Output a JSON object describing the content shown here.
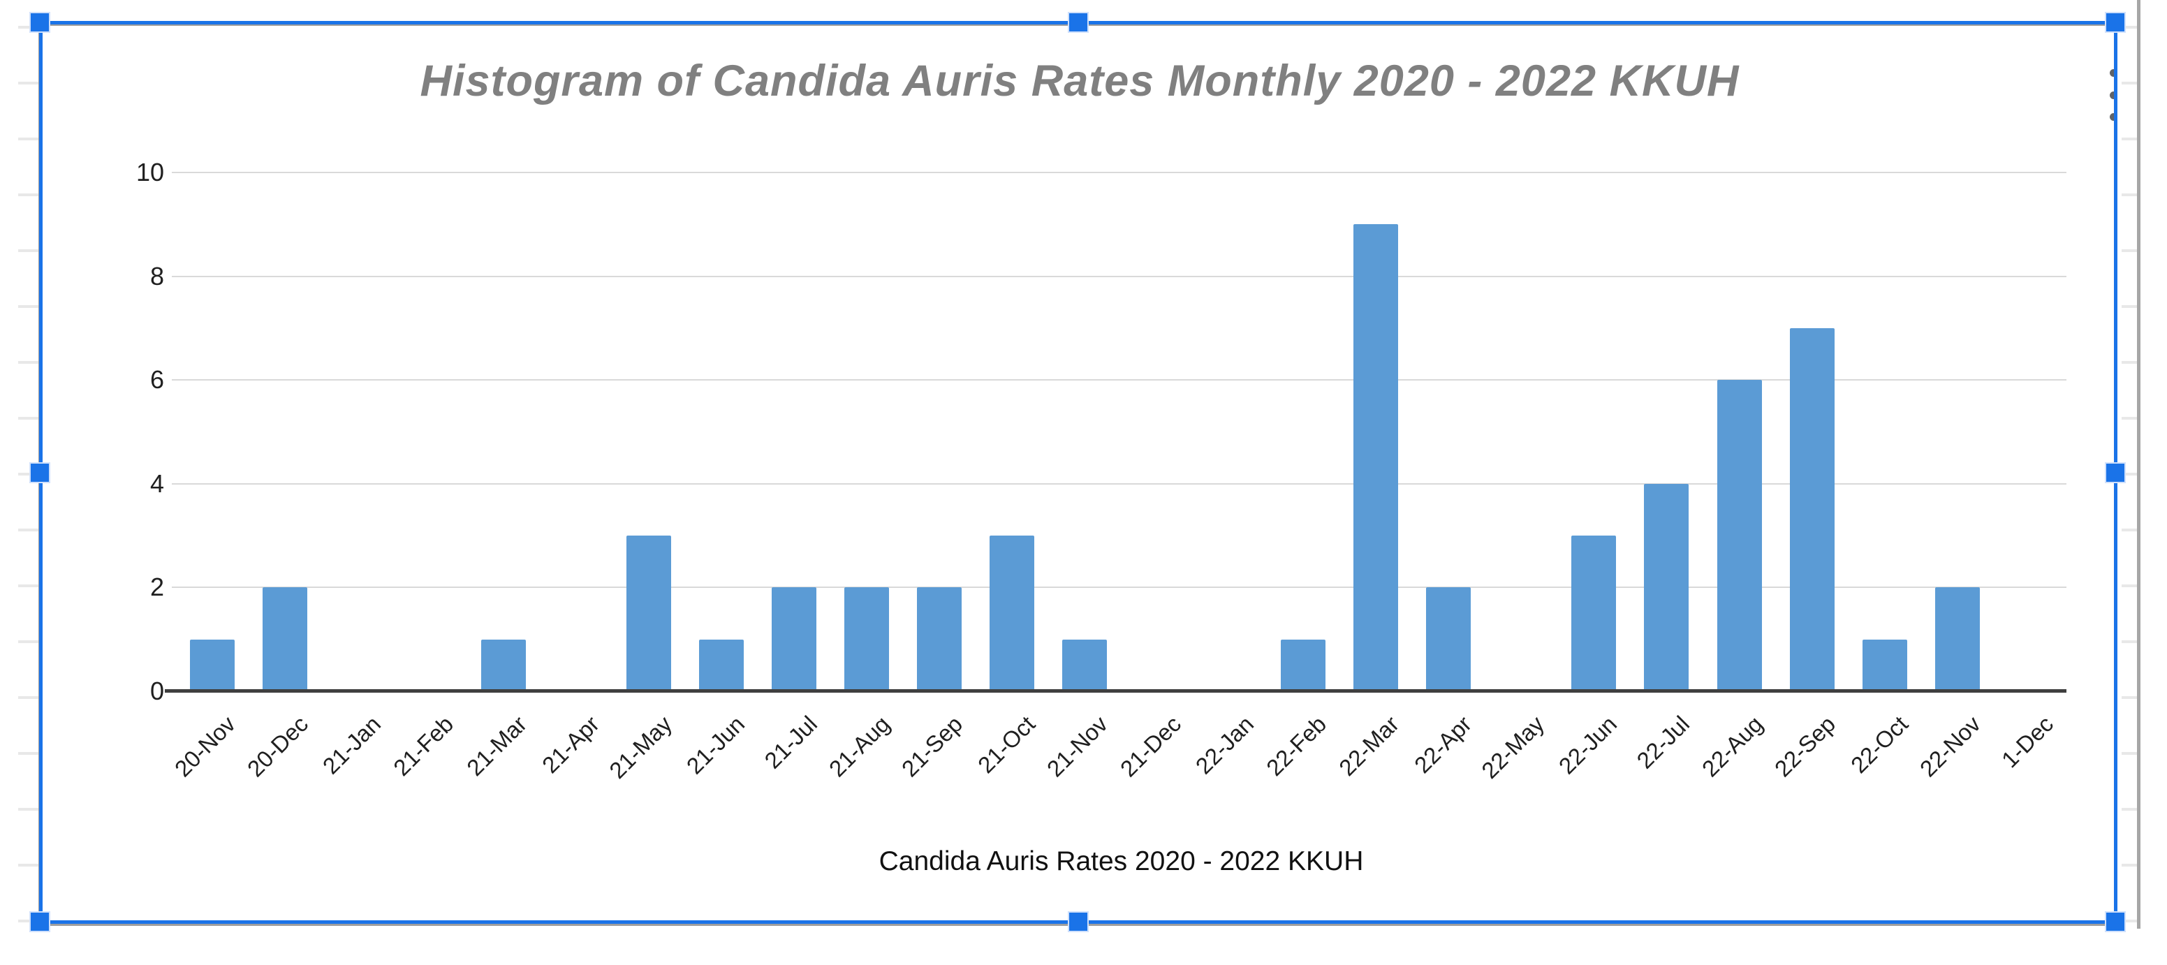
{
  "chart_data": {
    "type": "bar",
    "title": "Histogram of Candida Auris Rates Monthly 2020 - 2022 KKUH",
    "xlabel": "Candida Auris Rates 2020 - 2022 KKUH",
    "ylabel": "",
    "categories": [
      "20-Nov",
      "20-Dec",
      "21-Jan",
      "21-Feb",
      "21-Mar",
      "21-Apr",
      "21-May",
      "21-Jun",
      "21-Jul",
      "21-Aug",
      "21-Sep",
      "21-Oct",
      "21-Nov",
      "21-Dec",
      "22-Jan",
      "22-Feb",
      "22-Mar",
      "22-Apr",
      "22-May",
      "22-Jun",
      "22-Jul",
      "22-Aug",
      "22-Sep",
      "22-Oct",
      "22-Nov",
      "1-Dec"
    ],
    "values": [
      1,
      2,
      0,
      0,
      1,
      0,
      3,
      1,
      2,
      2,
      2,
      3,
      1,
      0,
      0,
      1,
      9,
      2,
      0,
      3,
      4,
      6,
      7,
      1,
      2,
      0
    ],
    "yticks": [
      0,
      2,
      4,
      6,
      8,
      10
    ],
    "ylim": [
      0,
      10
    ],
    "grid": true,
    "legend": "none",
    "bar_color": "#5b9bd5",
    "title_color": "#808080",
    "gridline_color": "#d9d9d9",
    "axis_color": "#3f3f3f"
  },
  "selection": {
    "state": "selected",
    "accent_color": "#1a73e8",
    "handles": [
      "top-left",
      "top-center",
      "top-right",
      "middle-left",
      "middle-right",
      "bottom-left",
      "bottom-center",
      "bottom-right"
    ]
  },
  "menu": {
    "kebab_icon": "more-options"
  }
}
